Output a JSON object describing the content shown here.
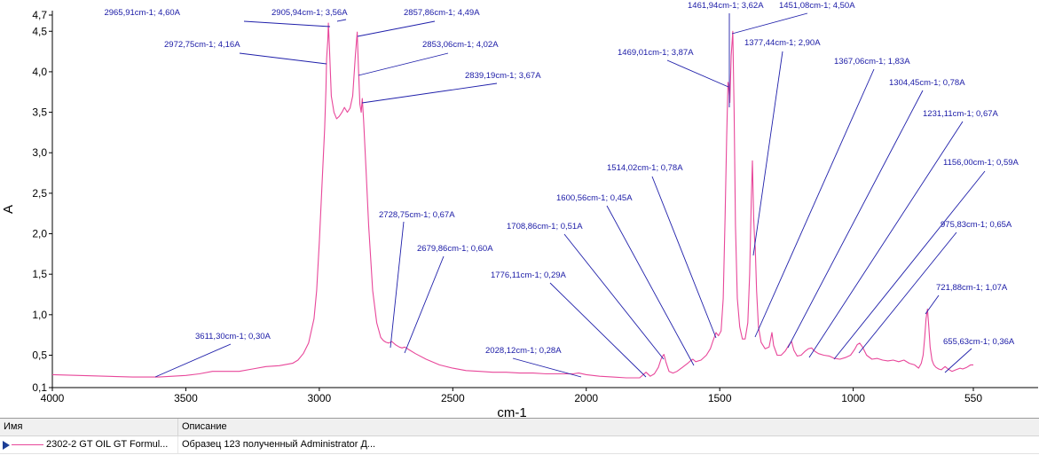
{
  "chart_data": {
    "type": "line",
    "xlabel": "cm-1",
    "ylabel": "A",
    "x_range": [
      4000,
      550
    ],
    "x_reversed": true,
    "y_range": [
      0.1,
      4.7
    ],
    "x_ticks": [
      {
        "value": 4000,
        "label": "4000"
      },
      {
        "value": 3500,
        "label": "3500"
      },
      {
        "value": 3000,
        "label": "3000"
      },
      {
        "value": 2500,
        "label": "2500"
      },
      {
        "value": 2000,
        "label": "2000"
      },
      {
        "value": 1500,
        "label": "1500"
      },
      {
        "value": 1000,
        "label": "1000"
      },
      {
        "value": 550,
        "label": "550"
      }
    ],
    "y_ticks": [
      {
        "value": 0.1,
        "label": "0,1"
      },
      {
        "value": 0.5,
        "label": "0,5"
      },
      {
        "value": 1.0,
        "label": "1,0"
      },
      {
        "value": 1.5,
        "label": "1,5"
      },
      {
        "value": 2.0,
        "label": "2,0"
      },
      {
        "value": 2.5,
        "label": "2,5"
      },
      {
        "value": 3.0,
        "label": "3,0"
      },
      {
        "value": 3.5,
        "label": "3,5"
      },
      {
        "value": 4.0,
        "label": "4,0"
      },
      {
        "value": 4.5,
        "label": "4,5"
      },
      {
        "value": 4.7,
        "label": "4,7"
      }
    ],
    "grid": false,
    "series": [
      {
        "color": "#e8479a",
        "points": [
          [
            4000,
            0.26
          ],
          [
            3900,
            0.25
          ],
          [
            3800,
            0.24
          ],
          [
            3700,
            0.23
          ],
          [
            3600,
            0.23
          ],
          [
            3500,
            0.25
          ],
          [
            3450,
            0.27
          ],
          [
            3400,
            0.3
          ],
          [
            3350,
            0.3
          ],
          [
            3300,
            0.3
          ],
          [
            3250,
            0.33
          ],
          [
            3200,
            0.36
          ],
          [
            3150,
            0.37
          ],
          [
            3100,
            0.4
          ],
          [
            3080,
            0.44
          ],
          [
            3060,
            0.52
          ],
          [
            3040,
            0.65
          ],
          [
            3020,
            0.95
          ],
          [
            3010,
            1.3
          ],
          [
            3000,
            1.9
          ],
          [
            2990,
            2.6
          ],
          [
            2980,
            3.3
          ],
          [
            2975,
            3.8
          ],
          [
            2972.75,
            4.16
          ],
          [
            2968,
            4.4
          ],
          [
            2965.91,
            4.6
          ],
          [
            2962,
            4.3
          ],
          [
            2955,
            3.7
          ],
          [
            2945,
            3.5
          ],
          [
            2935,
            3.42
          ],
          [
            2925,
            3.45
          ],
          [
            2915,
            3.5
          ],
          [
            2905.94,
            3.56
          ],
          [
            2895,
            3.5
          ],
          [
            2885,
            3.55
          ],
          [
            2875,
            3.7
          ],
          [
            2865,
            4.2
          ],
          [
            2857.86,
            4.49
          ],
          [
            2855,
            4.2
          ],
          [
            2853.06,
            4.02
          ],
          [
            2848,
            3.6
          ],
          [
            2843,
            3.5
          ],
          [
            2839.19,
            3.67
          ],
          [
            2834,
            3.4
          ],
          [
            2825,
            2.8
          ],
          [
            2815,
            2.1
          ],
          [
            2800,
            1.3
          ],
          [
            2785,
            0.9
          ],
          [
            2770,
            0.72
          ],
          [
            2760,
            0.68
          ],
          [
            2750,
            0.66
          ],
          [
            2740,
            0.65
          ],
          [
            2728.75,
            0.67
          ],
          [
            2715,
            0.63
          ],
          [
            2700,
            0.6
          ],
          [
            2690,
            0.59
          ],
          [
            2679.86,
            0.6
          ],
          [
            2665,
            0.57
          ],
          [
            2640,
            0.52
          ],
          [
            2600,
            0.45
          ],
          [
            2550,
            0.38
          ],
          [
            2500,
            0.34
          ],
          [
            2450,
            0.31
          ],
          [
            2400,
            0.3
          ],
          [
            2350,
            0.29
          ],
          [
            2300,
            0.29
          ],
          [
            2250,
            0.28
          ],
          [
            2200,
            0.28
          ],
          [
            2150,
            0.27
          ],
          [
            2100,
            0.27
          ],
          [
            2050,
            0.27
          ],
          [
            2028.12,
            0.28
          ],
          [
            2000,
            0.26
          ],
          [
            1950,
            0.24
          ],
          [
            1900,
            0.23
          ],
          [
            1850,
            0.22
          ],
          [
            1800,
            0.22
          ],
          [
            1776.11,
            0.29
          ],
          [
            1760,
            0.24
          ],
          [
            1745,
            0.27
          ],
          [
            1730,
            0.35
          ],
          [
            1720,
            0.45
          ],
          [
            1712,
            0.5
          ],
          [
            1708.86,
            0.51
          ],
          [
            1702,
            0.42
          ],
          [
            1690,
            0.3
          ],
          [
            1675,
            0.28
          ],
          [
            1660,
            0.3
          ],
          [
            1640,
            0.35
          ],
          [
            1620,
            0.4
          ],
          [
            1610,
            0.43
          ],
          [
            1600.56,
            0.45
          ],
          [
            1590,
            0.42
          ],
          [
            1570,
            0.44
          ],
          [
            1550,
            0.5
          ],
          [
            1535,
            0.58
          ],
          [
            1525,
            0.68
          ],
          [
            1514.02,
            0.78
          ],
          [
            1505,
            0.74
          ],
          [
            1495,
            0.8
          ],
          [
            1487,
            1.2
          ],
          [
            1480,
            2.2
          ],
          [
            1474,
            3.2
          ],
          [
            1469.01,
            3.87
          ],
          [
            1466,
            3.8
          ],
          [
            1461.94,
            3.62
          ],
          [
            1457,
            4.2
          ],
          [
            1451.08,
            4.5
          ],
          [
            1446,
            3.5
          ],
          [
            1441,
            2.1
          ],
          [
            1434,
            1.2
          ],
          [
            1425,
            0.85
          ],
          [
            1415,
            0.7
          ],
          [
            1405,
            0.7
          ],
          [
            1395,
            0.9
          ],
          [
            1388,
            1.5
          ],
          [
            1382,
            2.4
          ],
          [
            1377.44,
            2.9
          ],
          [
            1373,
            2.2
          ],
          [
            1369,
            1.9
          ],
          [
            1367.06,
            1.83
          ],
          [
            1362,
            1.3
          ],
          [
            1355,
            0.85
          ],
          [
            1345,
            0.66
          ],
          [
            1330,
            0.58
          ],
          [
            1315,
            0.6
          ],
          [
            1304.45,
            0.78
          ],
          [
            1298,
            0.62
          ],
          [
            1285,
            0.5
          ],
          [
            1270,
            0.5
          ],
          [
            1255,
            0.55
          ],
          [
            1240,
            0.63
          ],
          [
            1231.11,
            0.67
          ],
          [
            1222,
            0.56
          ],
          [
            1210,
            0.49
          ],
          [
            1195,
            0.5
          ],
          [
            1180,
            0.55
          ],
          [
            1168,
            0.58
          ],
          [
            1156.0,
            0.59
          ],
          [
            1145,
            0.55
          ],
          [
            1130,
            0.52
          ],
          [
            1110,
            0.5
          ],
          [
            1090,
            0.49
          ],
          [
            1070,
            0.46
          ],
          [
            1050,
            0.45
          ],
          [
            1030,
            0.47
          ],
          [
            1010,
            0.5
          ],
          [
            995,
            0.57
          ],
          [
            985,
            0.63
          ],
          [
            975.83,
            0.65
          ],
          [
            965,
            0.6
          ],
          [
            950,
            0.5
          ],
          [
            930,
            0.45
          ],
          [
            910,
            0.46
          ],
          [
            890,
            0.44
          ],
          [
            870,
            0.43
          ],
          [
            850,
            0.44
          ],
          [
            830,
            0.42
          ],
          [
            810,
            0.44
          ],
          [
            790,
            0.4
          ],
          [
            770,
            0.38
          ],
          [
            755,
            0.34
          ],
          [
            745,
            0.4
          ],
          [
            738,
            0.5
          ],
          [
            732,
            0.72
          ],
          [
            727,
            0.95
          ],
          [
            721.88,
            1.07
          ],
          [
            717,
            0.85
          ],
          [
            712,
            0.6
          ],
          [
            705,
            0.44
          ],
          [
            698,
            0.38
          ],
          [
            690,
            0.35
          ],
          [
            680,
            0.33
          ],
          [
            670,
            0.32
          ],
          [
            663,
            0.34
          ],
          [
            655.63,
            0.36
          ],
          [
            645,
            0.33
          ],
          [
            630,
            0.3
          ],
          [
            615,
            0.32
          ],
          [
            600,
            0.34
          ],
          [
            590,
            0.33
          ],
          [
            575,
            0.35
          ],
          [
            560,
            0.38
          ],
          [
            550,
            0.38
          ]
        ]
      }
    ],
    "annotations": [
      {
        "x": 2965.91,
        "y": 4.6,
        "label": "2965,91cm-1; 4,60A"
      },
      {
        "x": 2905.94,
        "y": 3.56,
        "label": "2905,94cm-1; 3,56A"
      },
      {
        "x": 2857.86,
        "y": 4.49,
        "label": "2857,86cm-1; 4,49A"
      },
      {
        "x": 2972.75,
        "y": 4.16,
        "label": "2972,75cm-1; 4,16A"
      },
      {
        "x": 2853.06,
        "y": 4.02,
        "label": "2853,06cm-1; 4,02A"
      },
      {
        "x": 2839.19,
        "y": 3.67,
        "label": "2839,19cm-1; 3,67A"
      },
      {
        "x": 2728.75,
        "y": 0.67,
        "label": "2728,75cm-1; 0,67A"
      },
      {
        "x": 2679.86,
        "y": 0.6,
        "label": "2679,86cm-1; 0,60A"
      },
      {
        "x": 3611.3,
        "y": 0.3,
        "label": "3611,30cm-1; 0,30A"
      },
      {
        "x": 2028.12,
        "y": 0.28,
        "label": "2028,12cm-1; 0,28A"
      },
      {
        "x": 1776.11,
        "y": 0.29,
        "label": "1776,11cm-1; 0,29A"
      },
      {
        "x": 1708.86,
        "y": 0.51,
        "label": "1708,86cm-1; 0,51A"
      },
      {
        "x": 1600.56,
        "y": 0.45,
        "label": "1600,56cm-1; 0,45A"
      },
      {
        "x": 1514.02,
        "y": 0.78,
        "label": "1514,02cm-1; 0,78A"
      },
      {
        "x": 1469.01,
        "y": 3.87,
        "label": "1469,01cm-1; 3,87A"
      },
      {
        "x": 1461.94,
        "y": 3.62,
        "label": "1461,94cm-1; 3,62A"
      },
      {
        "x": 1451.08,
        "y": 4.5,
        "label": "1451,08cm-1; 4,50A"
      },
      {
        "x": 1377.44,
        "y": 2.9,
        "label": "1377,44cm-1; 2,90A"
      },
      {
        "x": 1367.06,
        "y": 1.83,
        "label": "1367,06cm-1; 1,83A"
      },
      {
        "x": 1304.45,
        "y": 0.78,
        "label": "1304,45cm-1; 0,78A"
      },
      {
        "x": 1231.11,
        "y": 0.67,
        "label": "1231,11cm-1; 0,67A"
      },
      {
        "x": 1156.0,
        "y": 0.59,
        "label": "1156,00cm-1; 0,59A"
      },
      {
        "x": 975.83,
        "y": 0.65,
        "label": "975,83cm-1; 0,65A"
      },
      {
        "x": 721.88,
        "y": 1.07,
        "label": "721,88cm-1; 1,07A"
      },
      {
        "x": 655.63,
        "y": 0.36,
        "label": "655,63cm-1; 0,36A"
      }
    ]
  },
  "legend_table": {
    "columns": [
      "Имя",
      "Описание"
    ],
    "rows": [
      {
        "name": "2302-2 GT OIL GT Formul...",
        "description": "Образец 123 полученный Administrator Д...",
        "color": "#e8479a"
      }
    ]
  }
}
